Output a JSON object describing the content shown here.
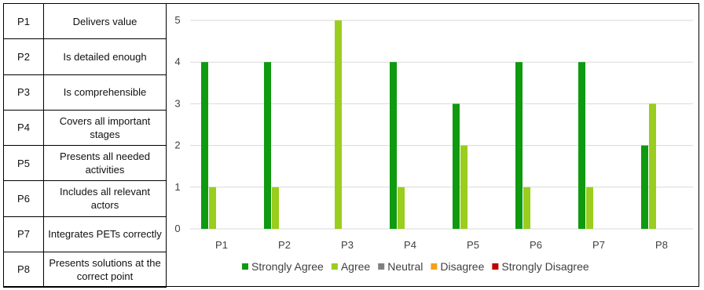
{
  "table": {
    "rows": [
      {
        "id": "P1",
        "label": "Delivers value"
      },
      {
        "id": "P2",
        "label": "Is detailed enough"
      },
      {
        "id": "P3",
        "label": "Is comprehensible"
      },
      {
        "id": "P4",
        "label": "Covers all important stages"
      },
      {
        "id": "P5",
        "label": "Presents all needed activities"
      },
      {
        "id": "P6",
        "label": "Includes all relevant actors"
      },
      {
        "id": "P7",
        "label": "Integrates PETs correctly"
      },
      {
        "id": "P8",
        "label": "Presents solutions at the correct point"
      }
    ]
  },
  "chart_data": {
    "type": "bar",
    "categories": [
      "P1",
      "P2",
      "P3",
      "P4",
      "P5",
      "P6",
      "P7",
      "P8"
    ],
    "series": [
      {
        "name": "Strongly Agree",
        "color": "#0f9a0f",
        "values": [
          4,
          4,
          0,
          4,
          3,
          4,
          4,
          2
        ]
      },
      {
        "name": "Agree",
        "color": "#9acd1e",
        "values": [
          1,
          1,
          5,
          1,
          2,
          1,
          1,
          3
        ]
      },
      {
        "name": "Neutral",
        "color": "#808080",
        "values": [
          0,
          0,
          0,
          0,
          0,
          0,
          0,
          0
        ]
      },
      {
        "name": "Disagree",
        "color": "#f5a01a",
        "values": [
          0,
          0,
          0,
          0,
          0,
          0,
          0,
          0
        ]
      },
      {
        "name": "Strongly Disagree",
        "color": "#c00000",
        "values": [
          0,
          0,
          0,
          0,
          0,
          0,
          0,
          0
        ]
      }
    ],
    "ylim": [
      0,
      5
    ],
    "yticks": [
      0,
      1,
      2,
      3,
      4,
      5
    ],
    "grid": true,
    "legend": "bottom"
  }
}
